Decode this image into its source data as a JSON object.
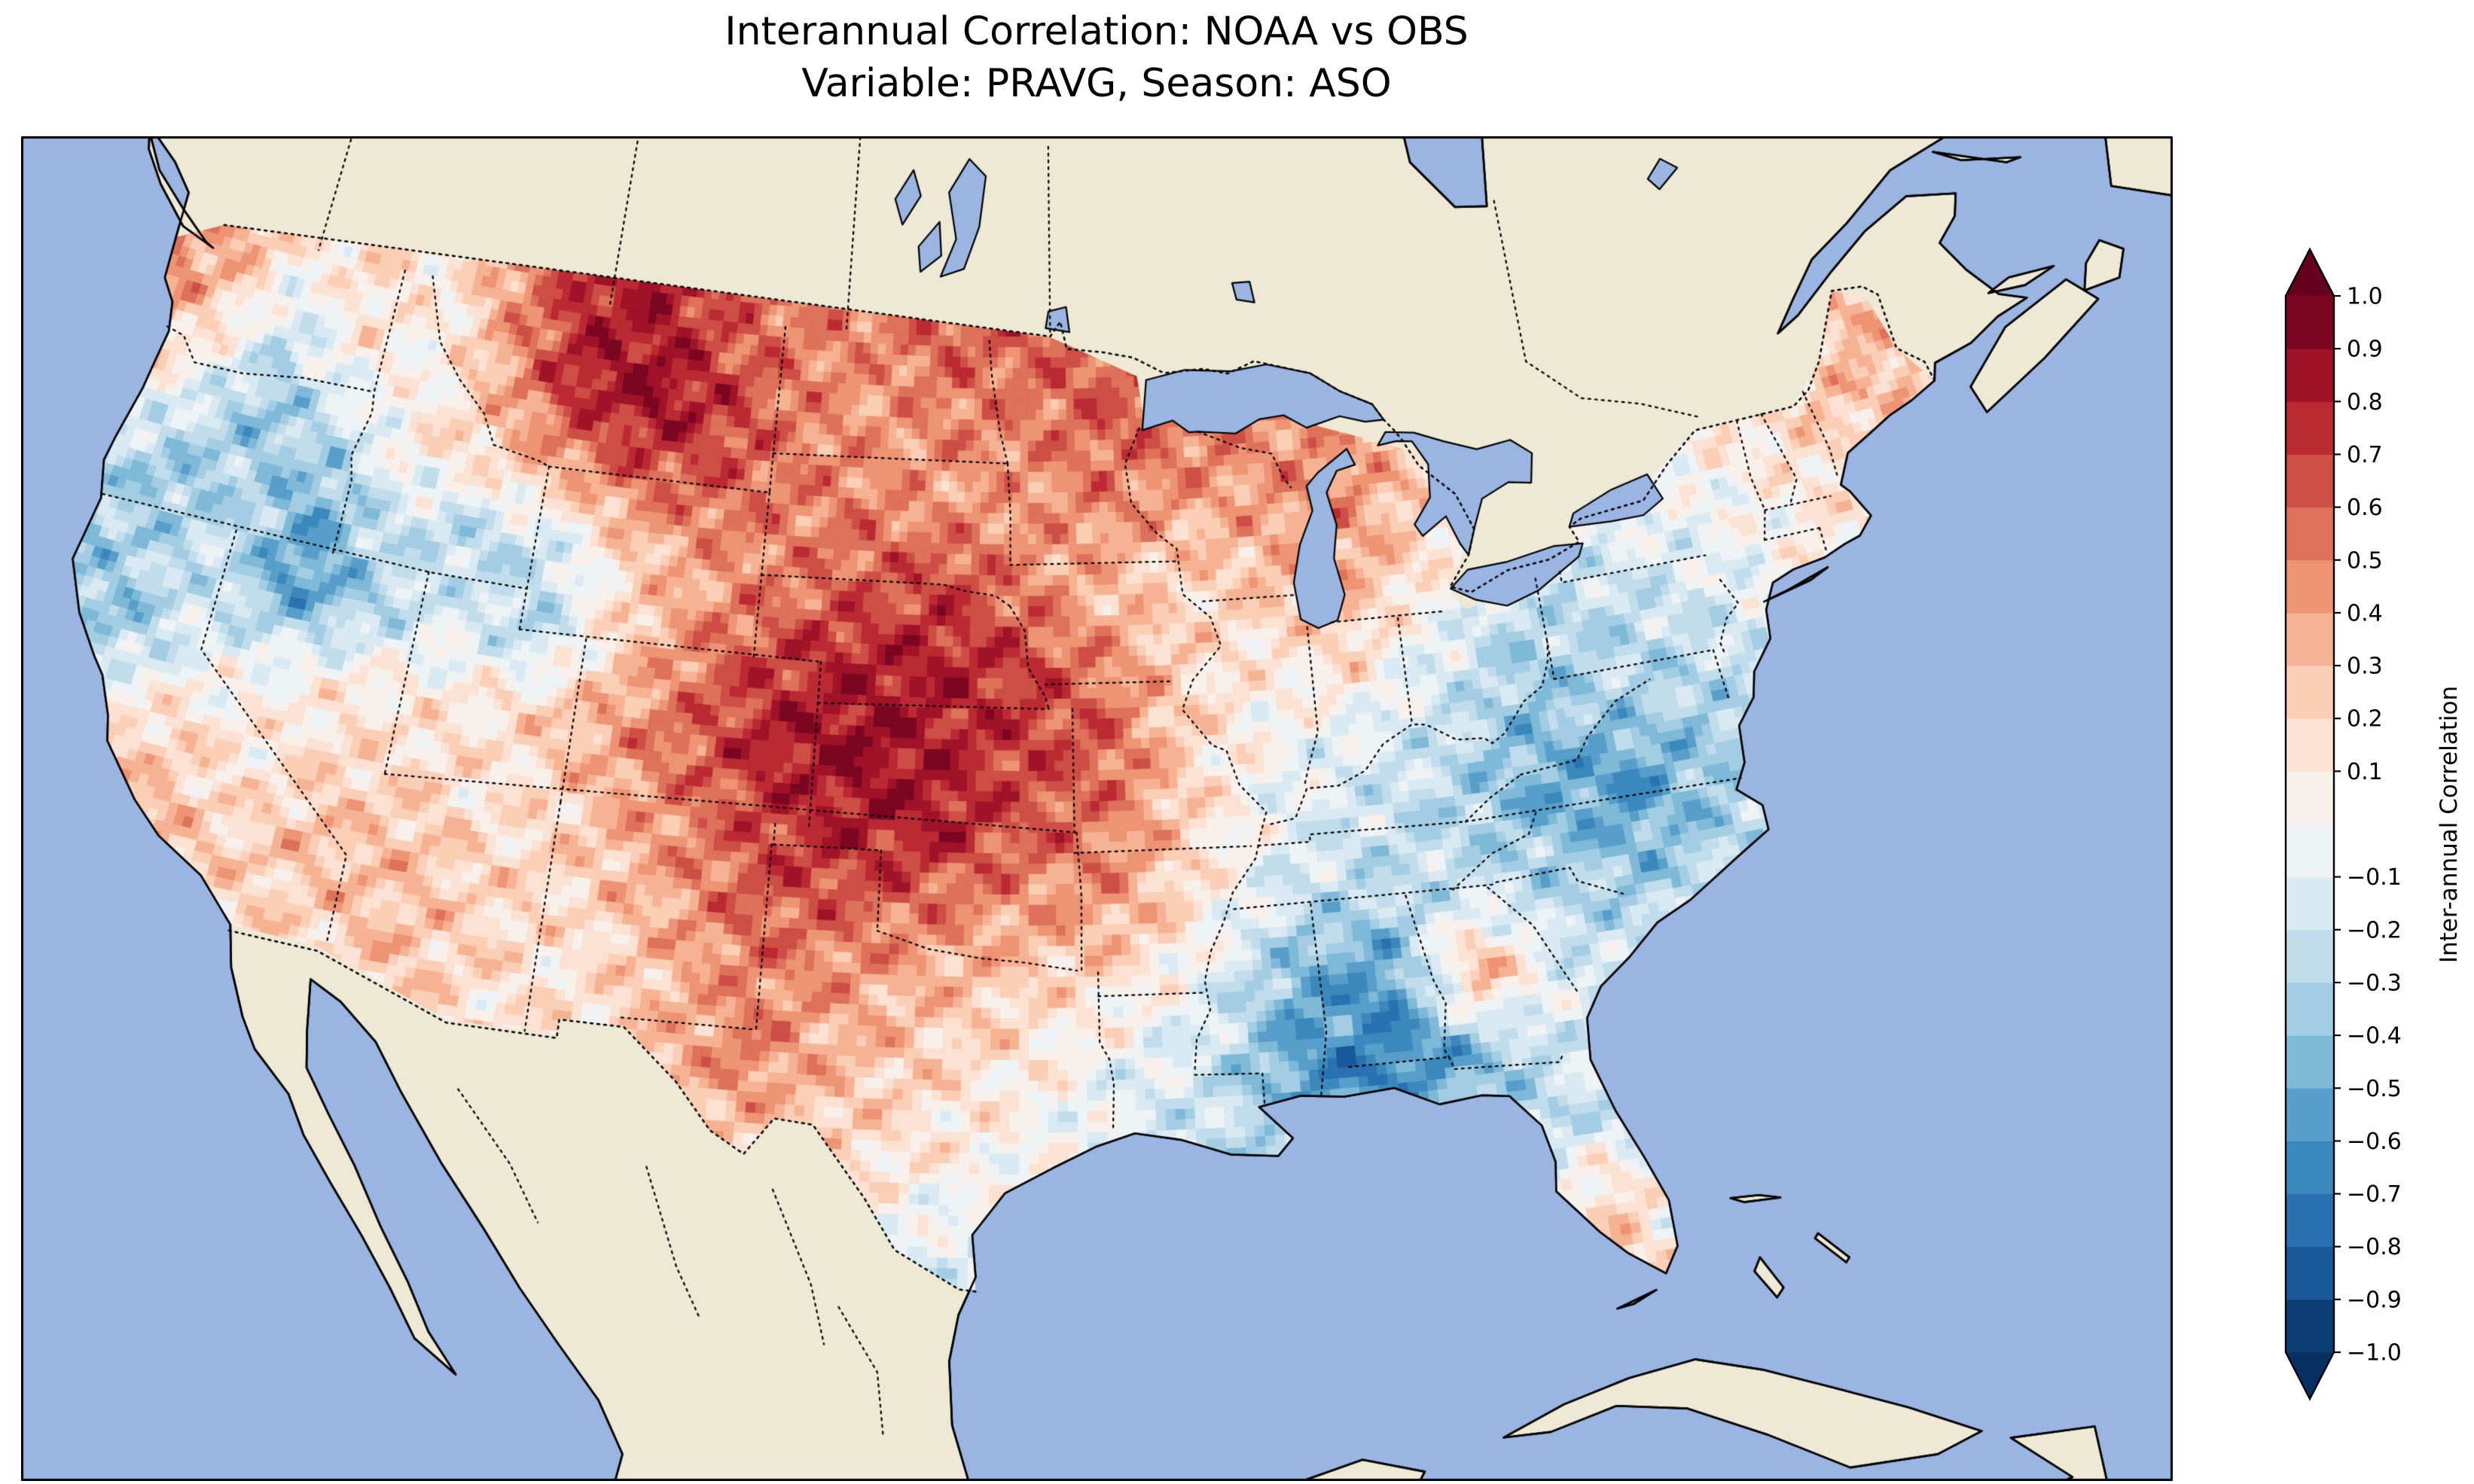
{
  "figure": {
    "title_line1": "Interannual Correlation: NOAA vs OBS",
    "title_line2": "Variable: PRAVG, Season: ASO"
  },
  "map": {
    "ocean_color": "#9ab5e1",
    "land_color": "#ede9d5",
    "coast_color": "#000000",
    "border_style": "dotted"
  },
  "colorbar": {
    "label": "Inter-annual Correlation",
    "tick_values": [
      1.0,
      0.9,
      0.8,
      0.7,
      0.6,
      0.5,
      0.4,
      0.3,
      0.2,
      0.1,
      -0.1,
      -0.2,
      -0.3,
      -0.4,
      -0.5,
      -0.6,
      -0.7,
      -0.8,
      -0.9,
      -1.0
    ],
    "tick_labels": [
      "1.0",
      "0.9",
      "0.8",
      "0.7",
      "0.6",
      "0.5",
      "0.4",
      "0.3",
      "0.2",
      "0.1",
      "−0.1",
      "−0.2",
      "−0.3",
      "−0.4",
      "−0.5",
      "−0.6",
      "−0.7",
      "−0.8",
      "−0.9",
      "−1.0"
    ],
    "colors_low_to_high": [
      "#0c3e74",
      "#1a5999",
      "#2a71b2",
      "#3b88bd",
      "#579fca",
      "#7eb9d7",
      "#a2cde3",
      "#c1ddec",
      "#daeaf2",
      "#eef3f5",
      "#f8f0eb",
      "#fbe2d3",
      "#fbceb6",
      "#f6b393",
      "#ed9475",
      "#dd715a",
      "#cd4e45",
      "#bb2a33",
      "#9f1228",
      "#7a0622"
    ],
    "extend_min_color": "#053061",
    "extend_max_color": "#67001f"
  },
  "chart_data": {
    "type": "heatmap",
    "title": "Interannual Correlation: NOAA vs OBS",
    "subtitle": "Variable: PRAVG, Season: ASO",
    "colorbar_label": "Inter-annual Correlation",
    "colormap": "RdBu_r",
    "levels": {
      "min": -1.0,
      "max": 1.0,
      "step": 0.1
    },
    "extend": "both",
    "region": "Contiguous United States (Lambert-Conformal style map, surrounding Canada/Mexico shown as plain land, oceans blue)",
    "legend_position": "right vertical colorbar with triangular over/under extensions",
    "grid": {
      "note": "Approximate correlation values read from the shaded map; rows run north to south",
      "lon_start": -125,
      "lon_end": -67,
      "nx": 25,
      "lat_start": 49,
      "lat_end": 25,
      "ny": 13,
      "values": [
        [
          0.5,
          0.4,
          0.1,
          0.2,
          0.1,
          0.5,
          0.8,
          0.8,
          0.6,
          0.5,
          0.5,
          0.6,
          0.6,
          0.6,
          0.5,
          0.4,
          0.3,
          0.2,
          0.1,
          0.1,
          0.1,
          0.2,
          0.2,
          0.3,
          0.3
        ],
        [
          0.5,
          0.2,
          -0.2,
          0.1,
          0.0,
          0.4,
          0.8,
          0.9,
          0.7,
          0.5,
          0.4,
          0.5,
          0.5,
          0.6,
          0.6,
          0.5,
          0.4,
          0.2,
          0.1,
          0.0,
          0.1,
          0.1,
          0.2,
          0.3,
          0.4
        ],
        [
          0.2,
          -0.1,
          -0.4,
          -0.2,
          0.1,
          0.2,
          0.4,
          0.6,
          0.6,
          0.5,
          0.5,
          0.4,
          0.4,
          0.5,
          0.4,
          0.4,
          0.5,
          0.3,
          0.1,
          0.0,
          0.0,
          0.1,
          0.2,
          0.3,
          0.3
        ],
        [
          -0.2,
          -0.4,
          -0.3,
          -0.5,
          -0.2,
          -0.3,
          -0.2,
          0.2,
          0.4,
          0.5,
          0.6,
          0.7,
          0.5,
          0.3,
          0.2,
          0.3,
          0.4,
          0.2,
          0.0,
          -0.1,
          -0.1,
          0.0,
          0.1,
          0.2,
          0.2
        ],
        [
          -0.4,
          -0.3,
          -0.2,
          -0.6,
          -0.3,
          -0.1,
          -0.3,
          0.2,
          0.5,
          0.7,
          0.8,
          0.8,
          0.7,
          0.5,
          0.2,
          0.1,
          0.2,
          -0.1,
          -0.3,
          -0.3,
          -0.2,
          -0.1,
          0.1,
          0.1,
          0.1
        ],
        [
          -0.3,
          -0.4,
          -0.1,
          0.0,
          0.1,
          0.1,
          0.2,
          0.4,
          0.6,
          0.8,
          0.9,
          0.8,
          0.7,
          0.6,
          0.2,
          0.0,
          -0.1,
          -0.2,
          -0.4,
          -0.3,
          -0.3,
          -0.2,
          0.0,
          0.1,
          0.1
        ],
        [
          -0.2,
          0.1,
          0.2,
          0.1,
          0.2,
          0.2,
          0.1,
          0.3,
          0.5,
          0.7,
          0.8,
          0.8,
          0.6,
          0.5,
          0.2,
          -0.1,
          -0.2,
          -0.3,
          -0.5,
          -0.6,
          -0.4,
          -0.2,
          0.0,
          0.1,
          0.1
        ],
        [
          0.1,
          0.3,
          0.3,
          0.2,
          0.3,
          0.3,
          0.2,
          0.2,
          0.4,
          0.6,
          0.6,
          0.5,
          0.4,
          0.4,
          0.1,
          -0.2,
          -0.3,
          -0.2,
          -0.3,
          -0.4,
          -0.3,
          -0.1,
          0.0,
          0.0,
          0.0
        ],
        [
          0.2,
          0.4,
          0.3,
          0.2,
          0.2,
          0.3,
          0.2,
          0.1,
          0.3,
          0.5,
          0.4,
          0.3,
          0.2,
          0.1,
          -0.1,
          -0.5,
          -0.6,
          0.4,
          -0.2,
          -0.2,
          -0.1,
          -0.1,
          0.0,
          0.0,
          0.0
        ],
        [
          0.1,
          0.2,
          0.2,
          0.1,
          0.1,
          0.2,
          0.1,
          0.2,
          0.3,
          0.5,
          0.3,
          0.2,
          0.1,
          -0.1,
          -0.2,
          -0.6,
          -0.7,
          -0.4,
          -0.1,
          -0.2,
          -0.3,
          -0.2,
          0.0,
          0.0,
          0.0
        ],
        [
          0.0,
          0.1,
          0.1,
          0.0,
          0.0,
          0.1,
          0.1,
          0.1,
          0.2,
          0.2,
          0.2,
          0.1,
          0.0,
          -0.1,
          -0.2,
          -0.4,
          -0.4,
          -0.3,
          -0.2,
          -0.3,
          -0.2,
          -0.1,
          0.0,
          0.0,
          0.0
        ],
        [
          0.0,
          0.0,
          0.0,
          0.0,
          0.0,
          0.0,
          0.0,
          0.0,
          0.1,
          0.1,
          0.0,
          -0.1,
          -0.1,
          -0.1,
          -0.1,
          -0.2,
          -0.2,
          -0.2,
          0.3,
          -0.2,
          -0.1,
          0.0,
          0.0,
          0.0,
          0.0
        ],
        [
          0.0,
          0.0,
          0.0,
          0.0,
          0.0,
          0.0,
          0.0,
          0.0,
          0.0,
          0.0,
          -0.1,
          -0.2,
          -0.1,
          -0.1,
          -0.1,
          -0.1,
          -0.1,
          -0.1,
          0.2,
          0.1,
          0.0,
          0.0,
          0.0,
          0.0,
          0.0
        ]
      ]
    },
    "pattern_summary": [
      "Strong positive correlation (0.6 to 0.9, dark red) over Montana, the Dakotas, Nebraska, Kansas and the central Great Plains",
      "Moderate positive correlation (0.4 to 0.6) across the upper Midwest, around the Great Lakes and into eastern Colorado / Texas panhandle",
      "Strong negative correlation (−0.4 to −0.7, blue) over Mississippi and Alabama in the Southeast",
      "Negative correlation (−0.3 to −0.6) over the central Appalachians, Virginia and the mid-Atlantic interior",
      "Negative patches along the northern California coast, eastern Oregon and the Great Basin (NE Nevada)",
      "Weak or mixed correlation (−0.2 to 0.3) over Texas, the Gulf Coast, Florida and New England",
      "Small positive patches in western Georgia and central Florida"
    ]
  }
}
